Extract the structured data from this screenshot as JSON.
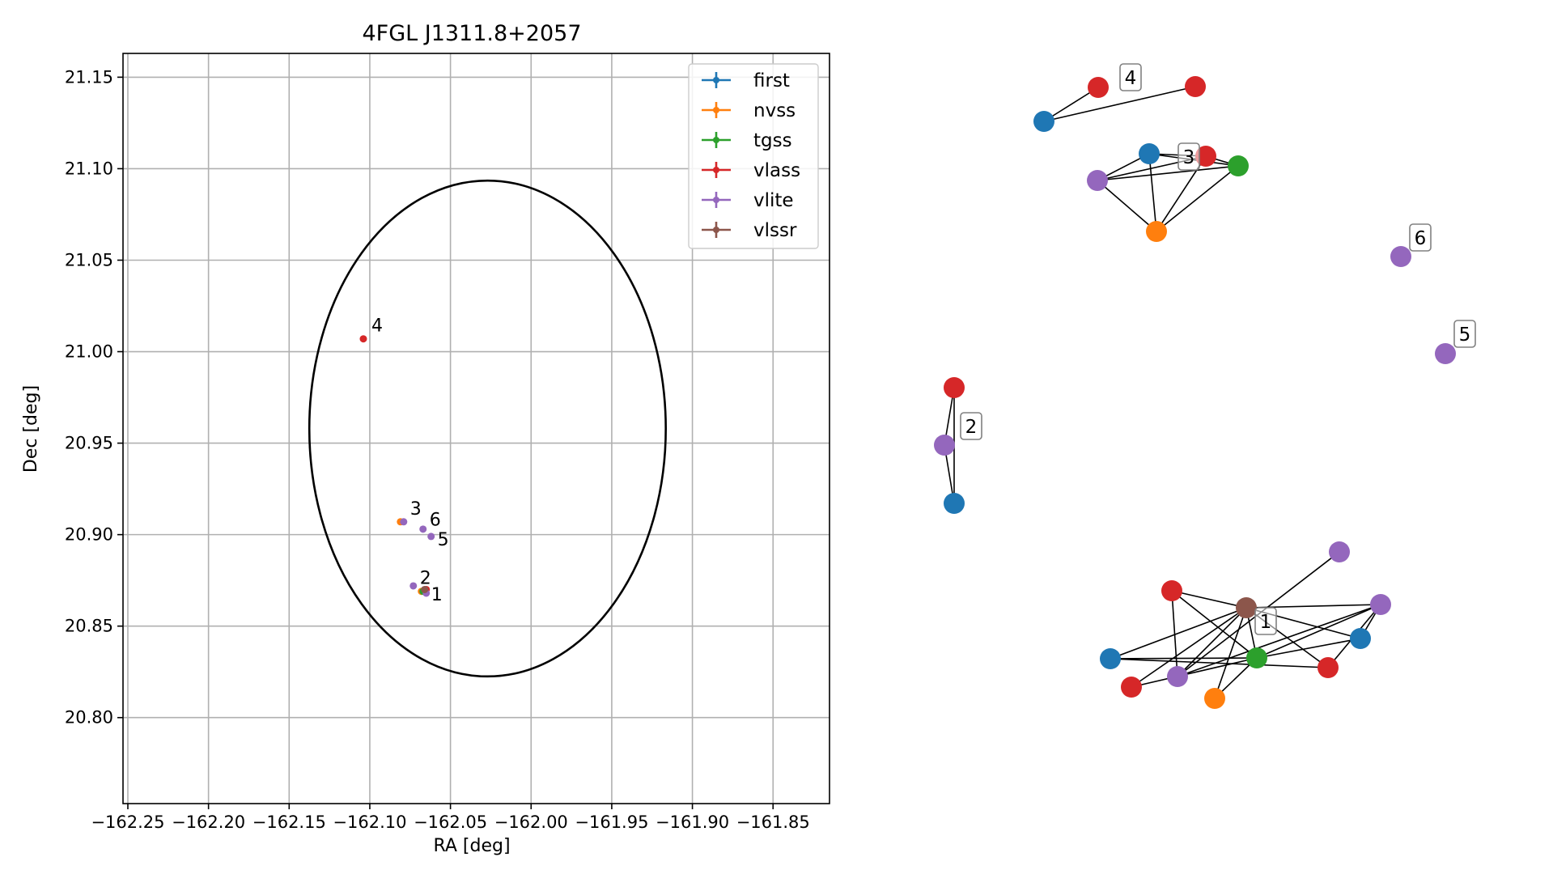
{
  "chart_data": [
    {
      "type": "scatter",
      "title": "4FGL J1311.8+2057",
      "xlabel": "RA [deg]",
      "ylabel": "Dec [deg]",
      "xlim": [
        -162.253,
        -161.815
      ],
      "ylim": [
        20.753,
        21.163
      ],
      "xticks": [
        -162.25,
        -162.2,
        -162.15,
        -162.1,
        -162.05,
        -162.0,
        -161.95,
        -161.9,
        -161.85
      ],
      "xtick_labels": [
        "−162.25",
        "−162.20",
        "−162.15",
        "−162.10",
        "−162.05",
        "−162.00",
        "−161.95",
        "−161.90",
        "−161.85"
      ],
      "yticks": [
        20.8,
        20.85,
        20.9,
        20.95,
        21.0,
        21.05,
        21.1,
        21.15
      ],
      "ytick_labels": [
        "20.80",
        "20.85",
        "20.90",
        "20.95",
        "21.00",
        "21.05",
        "21.10",
        "21.15"
      ],
      "grid": true,
      "legend_position": "top-right",
      "ellipse": {
        "center_ra": -162.027,
        "center_dec": 20.958,
        "semi_ra": 0.1105,
        "semi_dec": 0.1355
      },
      "series": [
        {
          "name": "first",
          "color": "#1f77b4",
          "points": [
            [
              -162.066,
              20.869
            ]
          ]
        },
        {
          "name": "nvss",
          "color": "#ff7f0e",
          "points": [
            [
              -162.081,
              20.907
            ],
            [
              -162.068,
              20.869
            ]
          ]
        },
        {
          "name": "tgss",
          "color": "#2ca02c",
          "points": [
            [
              -162.067,
              20.869
            ]
          ]
        },
        {
          "name": "vlass",
          "color": "#d62728",
          "points": [
            [
              -162.104,
              21.007
            ],
            [
              -162.065,
              20.87
            ]
          ]
        },
        {
          "name": "vlite",
          "color": "#9467bd",
          "points": [
            [
              -162.079,
              20.907
            ],
            [
              -162.073,
              20.872
            ],
            [
              -162.067,
              20.903
            ],
            [
              -162.062,
              20.899
            ],
            [
              -162.065,
              20.868
            ]
          ]
        },
        {
          "name": "vlssr",
          "color": "#8c564b",
          "points": [
            [
              -162.066,
              20.87
            ]
          ]
        }
      ],
      "source_labels": [
        {
          "text": "1",
          "ra": -162.062,
          "dec": 20.864
        },
        {
          "text": "2",
          "ra": -162.069,
          "dec": 20.873
        },
        {
          "text": "3",
          "ra": -162.075,
          "dec": 20.911
        },
        {
          "text": "4",
          "ra": -162.099,
          "dec": 21.011
        },
        {
          "text": "5",
          "ra": -162.058,
          "dec": 20.894
        },
        {
          "text": "6",
          "ra": -162.063,
          "dec": 20.905
        }
      ]
    },
    {
      "type": "network",
      "nodes": [
        {
          "id": "c4_blue",
          "color": "#1f77b4",
          "pos": [
            1290,
            150
          ]
        },
        {
          "id": "c4_red1",
          "color": "#d62728",
          "pos": [
            1357,
            108
          ]
        },
        {
          "id": "c4_red2",
          "color": "#d62728",
          "pos": [
            1477,
            107
          ]
        },
        {
          "id": "c3_blue",
          "color": "#1f77b4",
          "pos": [
            1420,
            190
          ]
        },
        {
          "id": "c3_red",
          "color": "#d62728",
          "pos": [
            1490,
            193
          ]
        },
        {
          "id": "c3_green",
          "color": "#2ca02c",
          "pos": [
            1530,
            205
          ]
        },
        {
          "id": "c3_purple",
          "color": "#9467bd",
          "pos": [
            1356,
            223
          ]
        },
        {
          "id": "c3_orange",
          "color": "#ff7f0e",
          "pos": [
            1429,
            286
          ]
        },
        {
          "id": "c6_purple",
          "color": "#9467bd",
          "pos": [
            1731,
            317
          ]
        },
        {
          "id": "c5_purple",
          "color": "#9467bd",
          "pos": [
            1786,
            437
          ]
        },
        {
          "id": "c2_red",
          "color": "#d62728",
          "pos": [
            1179,
            479
          ]
        },
        {
          "id": "c2_purple",
          "color": "#9467bd",
          "pos": [
            1167,
            550
          ]
        },
        {
          "id": "c2_blue",
          "color": "#1f77b4",
          "pos": [
            1179,
            622
          ]
        },
        {
          "id": "c1_purple_top",
          "color": "#9467bd",
          "pos": [
            1655,
            682
          ]
        },
        {
          "id": "c1_red_a",
          "color": "#d62728",
          "pos": [
            1448,
            730
          ]
        },
        {
          "id": "c1_brown",
          "color": "#8c564b",
          "pos": [
            1540,
            751
          ]
        },
        {
          "id": "c1_purple_r",
          "color": "#9467bd",
          "pos": [
            1706,
            747
          ]
        },
        {
          "id": "c1_blue_r",
          "color": "#1f77b4",
          "pos": [
            1681,
            789
          ]
        },
        {
          "id": "c1_blue_l",
          "color": "#1f77b4",
          "pos": [
            1372,
            814
          ]
        },
        {
          "id": "c1_green",
          "color": "#2ca02c",
          "pos": [
            1553,
            813
          ]
        },
        {
          "id": "c1_red_r",
          "color": "#d62728",
          "pos": [
            1641,
            825
          ]
        },
        {
          "id": "c1_red_b",
          "color": "#d62728",
          "pos": [
            1398,
            849
          ]
        },
        {
          "id": "c1_purple_b",
          "color": "#9467bd",
          "pos": [
            1455,
            836
          ]
        },
        {
          "id": "c1_orange",
          "color": "#ff7f0e",
          "pos": [
            1501,
            863
          ]
        }
      ],
      "edges": [
        [
          "c4_blue",
          "c4_red1"
        ],
        [
          "c4_blue",
          "c4_red2"
        ],
        [
          "c3_blue",
          "c3_red"
        ],
        [
          "c3_blue",
          "c3_green"
        ],
        [
          "c3_blue",
          "c3_purple"
        ],
        [
          "c3_blue",
          "c3_orange"
        ],
        [
          "c3_red",
          "c3_green"
        ],
        [
          "c3_red",
          "c3_purple"
        ],
        [
          "c3_red",
          "c3_orange"
        ],
        [
          "c3_green",
          "c3_purple"
        ],
        [
          "c3_green",
          "c3_orange"
        ],
        [
          "c3_purple",
          "c3_orange"
        ],
        [
          "c2_red",
          "c2_purple"
        ],
        [
          "c2_red",
          "c2_blue"
        ],
        [
          "c2_purple",
          "c2_blue"
        ],
        [
          "c1_brown",
          "c1_red_a"
        ],
        [
          "c1_brown",
          "c1_purple_r"
        ],
        [
          "c1_brown",
          "c1_blue_r"
        ],
        [
          "c1_brown",
          "c1_blue_l"
        ],
        [
          "c1_brown",
          "c1_green"
        ],
        [
          "c1_brown",
          "c1_red_r"
        ],
        [
          "c1_brown",
          "c1_red_b"
        ],
        [
          "c1_brown",
          "c1_purple_b"
        ],
        [
          "c1_brown",
          "c1_orange"
        ],
        [
          "c1_purple_top",
          "c1_purple_b"
        ],
        [
          "c1_red_a",
          "c1_purple_b"
        ],
        [
          "c1_red_a",
          "c1_green"
        ],
        [
          "c1_blue_l",
          "c1_green"
        ],
        [
          "c1_blue_l",
          "c1_red_r"
        ],
        [
          "c1_green",
          "c1_purple_r"
        ],
        [
          "c1_green",
          "c1_blue_r"
        ],
        [
          "c1_green",
          "c1_red_b"
        ],
        [
          "c1_green",
          "c1_orange"
        ],
        [
          "c1_purple_r",
          "c1_blue_r"
        ],
        [
          "c1_purple_r",
          "c1_red_r"
        ],
        [
          "c1_purple_r",
          "c1_purple_b"
        ]
      ],
      "labels": [
        {
          "text": "4",
          "pos": [
            1397,
            96
          ]
        },
        {
          "text": "3",
          "pos": [
            1469,
            194
          ]
        },
        {
          "text": "6",
          "pos": [
            1755,
            294
          ]
        },
        {
          "text": "5",
          "pos": [
            1810,
            413
          ]
        },
        {
          "text": "2",
          "pos": [
            1200,
            527
          ]
        },
        {
          "text": "1",
          "pos": [
            1564,
            768
          ]
        }
      ]
    }
  ]
}
